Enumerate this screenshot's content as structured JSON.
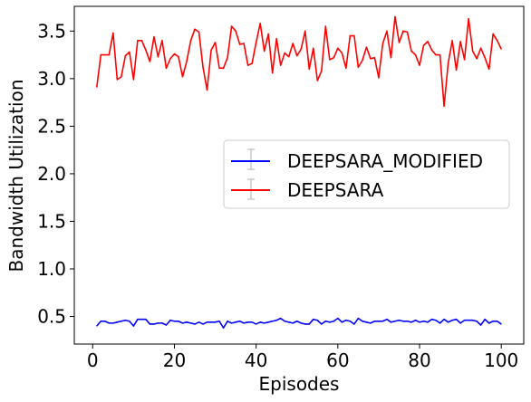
{
  "chart_data": {
    "type": "line",
    "title": "",
    "xlabel": "Episodes",
    "ylabel": "Bandwidth Utilization",
    "xlim": [
      -4.5,
      105.5
    ],
    "ylim": [
      0.21,
      3.76
    ],
    "xticks": [
      0,
      20,
      40,
      60,
      80,
      100
    ],
    "yticks": [
      0.5,
      1.0,
      1.5,
      2.0,
      2.5,
      3.0,
      3.5
    ],
    "xtick_labels": [
      "0",
      "20",
      "40",
      "60",
      "80",
      "100"
    ],
    "ytick_labels": [
      "0.5",
      "1.0",
      "1.5",
      "2.0",
      "2.5",
      "3.0",
      "3.5"
    ],
    "grid": false,
    "legend_position": "center-right",
    "x": [
      1,
      2,
      3,
      4,
      5,
      6,
      7,
      8,
      9,
      10,
      11,
      12,
      13,
      14,
      15,
      16,
      17,
      18,
      19,
      20,
      21,
      22,
      23,
      24,
      25,
      26,
      27,
      28,
      29,
      30,
      31,
      32,
      33,
      34,
      35,
      36,
      37,
      38,
      39,
      40,
      41,
      42,
      43,
      44,
      45,
      46,
      47,
      48,
      49,
      50,
      51,
      52,
      53,
      54,
      55,
      56,
      57,
      58,
      59,
      60,
      61,
      62,
      63,
      64,
      65,
      66,
      67,
      68,
      69,
      70,
      71,
      72,
      73,
      74,
      75,
      76,
      77,
      78,
      79,
      80,
      81,
      82,
      83,
      84,
      85,
      86,
      87,
      88,
      89,
      90,
      91,
      92,
      93,
      94,
      95,
      96,
      97,
      98,
      99,
      100
    ],
    "series": [
      {
        "name": "DEEPSARA_MODIFIED",
        "color": "#0000ff",
        "values": [
          0.4,
          0.45,
          0.45,
          0.43,
          0.43,
          0.44,
          0.45,
          0.46,
          0.45,
          0.4,
          0.47,
          0.47,
          0.47,
          0.42,
          0.42,
          0.43,
          0.43,
          0.41,
          0.46,
          0.45,
          0.45,
          0.43,
          0.44,
          0.43,
          0.42,
          0.44,
          0.42,
          0.44,
          0.44,
          0.44,
          0.45,
          0.38,
          0.45,
          0.43,
          0.44,
          0.45,
          0.43,
          0.44,
          0.44,
          0.42,
          0.44,
          0.43,
          0.44,
          0.45,
          0.46,
          0.48,
          0.45,
          0.44,
          0.43,
          0.45,
          0.43,
          0.42,
          0.42,
          0.47,
          0.46,
          0.42,
          0.45,
          0.44,
          0.45,
          0.48,
          0.44,
          0.46,
          0.45,
          0.42,
          0.48,
          0.45,
          0.44,
          0.43,
          0.45,
          0.45,
          0.45,
          0.47,
          0.44,
          0.45,
          0.46,
          0.45,
          0.45,
          0.44,
          0.46,
          0.44,
          0.45,
          0.44,
          0.47,
          0.46,
          0.43,
          0.47,
          0.44,
          0.46,
          0.47,
          0.43,
          0.46,
          0.46,
          0.46,
          0.45,
          0.41,
          0.47,
          0.43,
          0.45,
          0.45,
          0.42
        ]
      },
      {
        "name": "DEEPSARA",
        "color": "#ff0000",
        "values": [
          2.91,
          3.25,
          3.25,
          3.25,
          3.48,
          2.99,
          3.02,
          3.24,
          3.28,
          2.99,
          3.4,
          3.4,
          3.3,
          3.18,
          3.44,
          3.23,
          3.4,
          3.11,
          3.21,
          3.26,
          3.23,
          3.02,
          3.18,
          3.4,
          3.52,
          3.49,
          3.12,
          2.88,
          3.3,
          3.38,
          3.11,
          3.11,
          3.22,
          3.55,
          3.5,
          3.36,
          3.37,
          3.14,
          3.16,
          3.38,
          3.58,
          3.29,
          3.47,
          3.06,
          3.42,
          3.14,
          3.27,
          3.23,
          3.37,
          3.24,
          3.31,
          3.5,
          3.1,
          3.32,
          2.98,
          3.08,
          3.55,
          3.2,
          3.22,
          3.32,
          3.27,
          3.11,
          3.45,
          3.45,
          3.12,
          3.19,
          3.33,
          3.21,
          3.22,
          3.01,
          3.37,
          3.5,
          3.22,
          3.65,
          3.38,
          3.5,
          3.49,
          3.29,
          3.25,
          3.14,
          3.35,
          3.39,
          3.3,
          3.25,
          3.25,
          2.71,
          3.16,
          3.4,
          3.09,
          3.39,
          3.2,
          3.63,
          3.29,
          3.21,
          3.32,
          3.22,
          3.1,
          3.47,
          3.4,
          3.31
        ]
      }
    ]
  }
}
